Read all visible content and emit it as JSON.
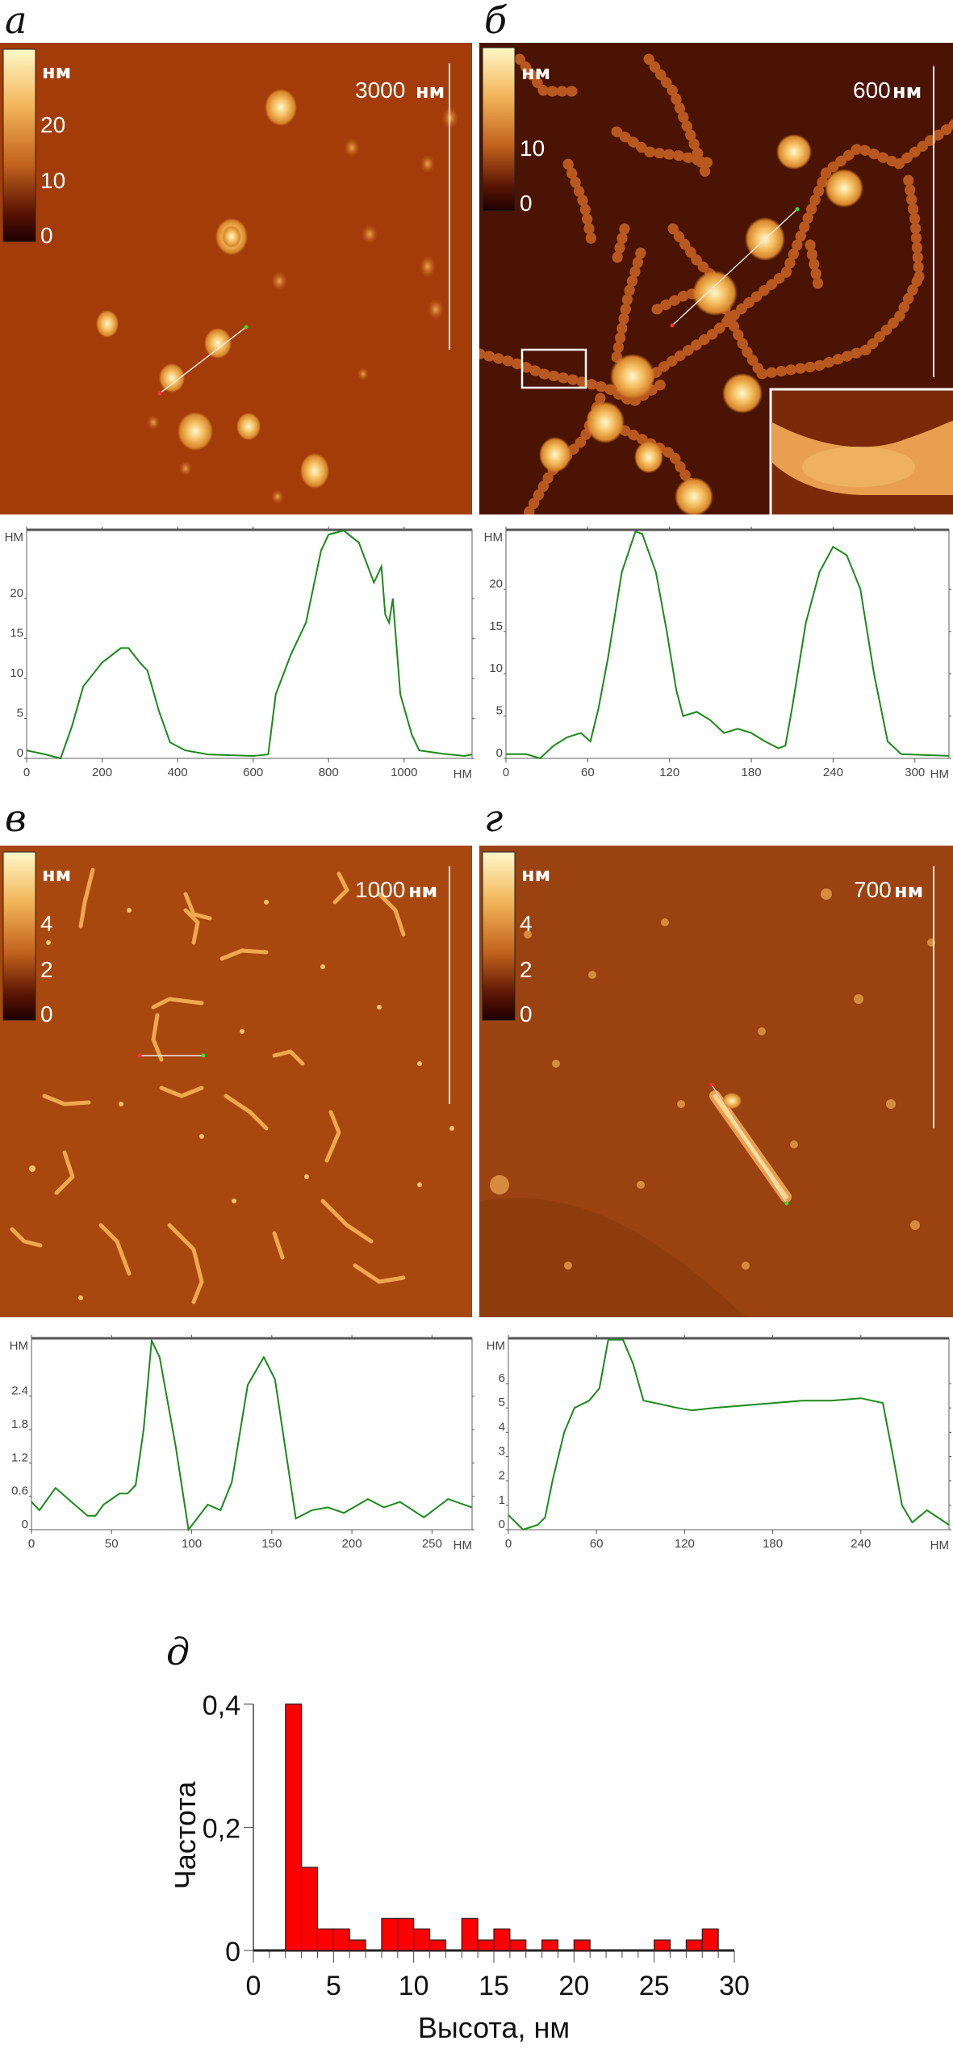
{
  "panels": [
    {
      "label": "а",
      "colorbar": {
        "unit": "нм",
        "ticks": [
          "20",
          "10",
          "0"
        ]
      },
      "scale_bar": {
        "value": "3000",
        "unit": "нм"
      }
    },
    {
      "label": "б",
      "colorbar": {
        "unit": "нм",
        "ticks": [
          "10",
          "0"
        ]
      },
      "scale_bar": {
        "value": "600",
        "unit": "нм"
      }
    },
    {
      "label": "в",
      "colorbar": {
        "unit": "нм",
        "ticks": [
          "4",
          "2",
          "0"
        ]
      },
      "scale_bar": {
        "value": "1000",
        "unit": "нм"
      }
    },
    {
      "label": "г",
      "colorbar": {
        "unit": "нм",
        "ticks": [
          "4",
          "2",
          "0"
        ]
      },
      "scale_bar": {
        "value": "700",
        "unit": "нм"
      }
    }
  ],
  "histogram_label": "д",
  "colors": {
    "profile_line": "#1a8a1a",
    "bar_fill": "#ff0000",
    "axis": "#555555"
  },
  "chart_data": [
    {
      "type": "line",
      "panel": "а",
      "xlabel": "НМ",
      "ylabel": "НМ",
      "xlim": [
        0,
        1180
      ],
      "ylim": [
        0,
        28.6
      ],
      "xticks": [
        0,
        200,
        400,
        600,
        800,
        1000
      ],
      "xtick_labels": [
        "0",
        "200",
        "400",
        "600",
        "800",
        "1000"
      ],
      "yticks": [
        0,
        5,
        10,
        15,
        20
      ],
      "ytick_labels": [
        "0",
        "5",
        "10",
        "15",
        "20"
      ],
      "x": [
        0,
        50,
        90,
        120,
        150,
        200,
        250,
        270,
        300,
        320,
        350,
        380,
        420,
        480,
        600,
        640,
        660,
        700,
        740,
        780,
        800,
        840,
        880,
        920,
        940,
        950,
        960,
        970,
        990,
        1020,
        1040,
        1100,
        1160,
        1180
      ],
      "y": [
        1,
        0.5,
        0,
        4,
        9,
        12,
        13.8,
        13.8,
        12,
        11,
        6,
        2,
        1,
        0.5,
        0.3,
        0.5,
        8,
        13,
        17,
        26,
        28,
        28.5,
        27,
        22,
        24,
        18,
        17,
        20,
        8,
        3,
        1,
        0.6,
        0.3,
        0.5
      ]
    },
    {
      "type": "line",
      "panel": "б",
      "xlabel": "НМ",
      "ylabel": "НМ",
      "xlim": [
        0,
        325
      ],
      "ylim": [
        0,
        27
      ],
      "xticks": [
        0,
        60,
        120,
        180,
        240,
        300
      ],
      "xtick_labels": [
        "0",
        "60",
        "120",
        "180",
        "240",
        "300"
      ],
      "yticks": [
        0,
        5,
        10,
        15,
        20
      ],
      "ytick_labels": [
        "0",
        "5",
        "10",
        "15",
        "20"
      ],
      "x": [
        0,
        15,
        25,
        35,
        45,
        55,
        62,
        68,
        75,
        85,
        95,
        100,
        110,
        118,
        125,
        130,
        140,
        150,
        160,
        170,
        180,
        190,
        200,
        205,
        210,
        220,
        230,
        240,
        250,
        260,
        270,
        280,
        290,
        325
      ],
      "y": [
        0.5,
        0.5,
        0,
        1.5,
        2.5,
        3,
        2,
        6,
        12,
        22,
        26.8,
        26.5,
        22,
        15,
        8,
        5,
        5.5,
        4.5,
        3,
        3.5,
        3,
        2,
        1.2,
        1.5,
        6,
        16,
        22,
        25,
        24,
        20,
        10,
        2,
        0.5,
        0.3
      ]
    },
    {
      "type": "line",
      "panel": "в",
      "xlabel": "НМ",
      "ylabel": "НМ",
      "xlim": [
        0,
        275
      ],
      "ylim": [
        0,
        3.44
      ],
      "xticks": [
        0,
        50,
        100,
        150,
        200,
        250
      ],
      "xtick_labels": [
        "0",
        "50",
        "100",
        "150",
        "200",
        "250"
      ],
      "yticks": [
        0,
        0.6,
        1.2,
        1.8,
        2.4
      ],
      "ytick_labels": [
        "0",
        "0.6",
        "1.2",
        "1.8",
        "2.4"
      ],
      "x": [
        0,
        5,
        15,
        25,
        35,
        40,
        45,
        55,
        60,
        65,
        70,
        75,
        80,
        90,
        98,
        110,
        118,
        125,
        135,
        145,
        152,
        165,
        175,
        185,
        195,
        210,
        220,
        230,
        245,
        260,
        275
      ],
      "y": [
        0.5,
        0.35,
        0.75,
        0.5,
        0.25,
        0.25,
        0.45,
        0.65,
        0.65,
        0.8,
        1.8,
        3.4,
        3.1,
        1.5,
        0,
        0.45,
        0.35,
        0.85,
        2.6,
        3.1,
        2.7,
        0.2,
        0.35,
        0.4,
        0.3,
        0.55,
        0.4,
        0.5,
        0.22,
        0.55,
        0.4
      ]
    },
    {
      "type": "line",
      "panel": "г",
      "xlabel": "НМ",
      "ylabel": "НМ",
      "xlim": [
        0,
        300
      ],
      "ylim": [
        0,
        7.86
      ],
      "xticks": [
        0,
        60,
        120,
        180,
        240
      ],
      "xtick_labels": [
        "0",
        "60",
        "120",
        "180",
        "240"
      ],
      "yticks": [
        0,
        1,
        2,
        3,
        4,
        5,
        6
      ],
      "ytick_labels": [
        "0",
        "1",
        "2",
        "3",
        "4",
        "5",
        "6"
      ],
      "x": [
        0,
        10,
        20,
        25,
        30,
        38,
        45,
        55,
        62,
        68,
        78,
        85,
        92,
        100,
        115,
        125,
        140,
        160,
        180,
        200,
        220,
        240,
        255,
        262,
        268,
        275,
        285,
        300
      ],
      "y": [
        0.6,
        0,
        0.2,
        0.5,
        2,
        4,
        5,
        5.3,
        5.8,
        7.8,
        7.8,
        6.8,
        5.3,
        5.2,
        5,
        4.9,
        5,
        5.1,
        5.2,
        5.3,
        5.3,
        5.4,
        5.2,
        3,
        1,
        0.3,
        0.8,
        0.2
      ]
    },
    {
      "type": "bar",
      "panel": "д",
      "xlabel": "Высота, нм",
      "ylabel": "Частота",
      "xlim": [
        0,
        30
      ],
      "ylim": [
        0,
        0.4
      ],
      "xticks": [
        0,
        5,
        10,
        15,
        20,
        25,
        30
      ],
      "xtick_labels": [
        "0",
        "5",
        "10",
        "15",
        "20",
        "25",
        "30"
      ],
      "yticks": [
        0,
        0.2,
        0.4
      ],
      "ytick_labels": [
        "0",
        "0,2",
        "0,4"
      ],
      "bin_width": 1,
      "bin_starts": [
        2,
        3,
        4,
        5,
        6,
        7,
        8,
        9,
        10,
        11,
        12,
        13,
        14,
        15,
        16,
        17,
        18,
        19,
        20,
        21,
        22,
        23,
        24,
        25,
        26,
        27,
        28
      ],
      "values": [
        0.4,
        0.135,
        0.035,
        0.035,
        0.017,
        0,
        0.052,
        0.052,
        0.035,
        0.017,
        0,
        0.052,
        0.017,
        0.035,
        0.017,
        0,
        0.017,
        0,
        0.017,
        0,
        0,
        0,
        0,
        0.017,
        0,
        0.017,
        0.035
      ]
    }
  ]
}
